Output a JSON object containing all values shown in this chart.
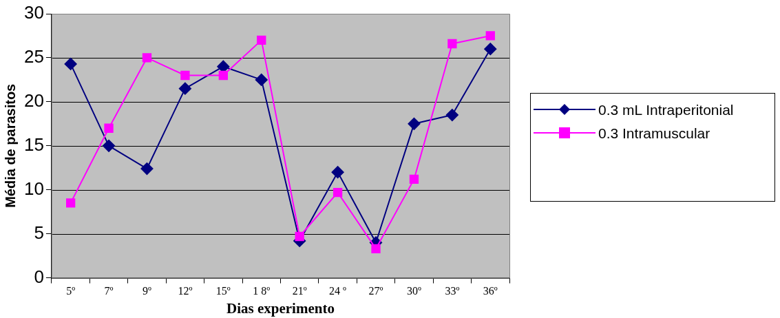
{
  "chart_data": {
    "type": "line",
    "xlabel": "Dias experimento",
    "ylabel": "Média de parasitos",
    "categories": [
      "5º",
      "7º",
      "9º",
      "12º",
      "15º",
      "1 8º",
      "21º",
      "24 º",
      "27º",
      "30º",
      "33º",
      "36º"
    ],
    "ylim": [
      0,
      30
    ],
    "yticks": [
      0,
      5,
      10,
      15,
      20,
      25,
      30
    ],
    "grid": "y",
    "legend": "right",
    "line_style": "solid",
    "series": [
      {
        "name": "0.3 mL Intraperitonial",
        "color": "#000080",
        "marker": "diamond",
        "values": [
          24.3,
          15,
          12.4,
          21.5,
          24,
          22.5,
          4.2,
          12,
          4,
          17.5,
          18.5,
          26
        ]
      },
      {
        "name": "0.3 Intramuscular",
        "color": "#ff00ff",
        "marker": "square",
        "values": [
          8.5,
          17,
          25,
          23,
          23,
          27,
          4.7,
          9.7,
          3.3,
          11.2,
          26.6,
          27.5
        ]
      }
    ]
  }
}
